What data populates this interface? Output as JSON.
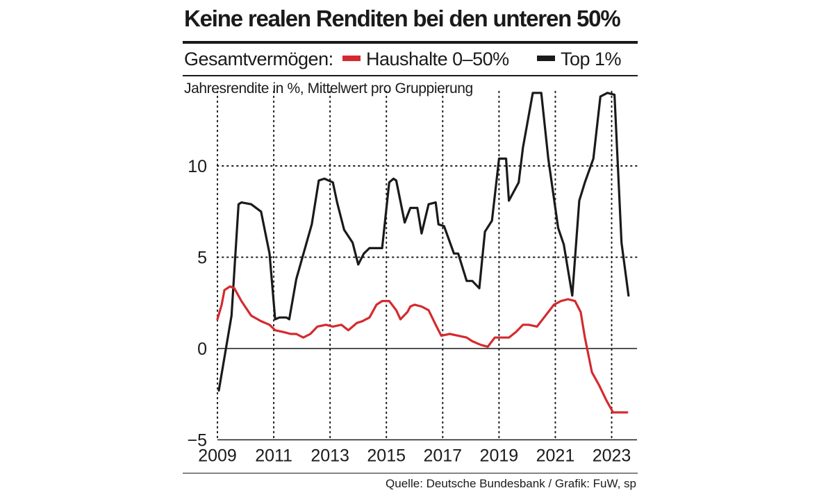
{
  "title": "Keine realen Renditen bei den unteren 50%",
  "legend": {
    "label": "Gesamtvermögen:",
    "items": [
      {
        "name": "Haushalte 0–50%",
        "color": "#d42a2f"
      },
      {
        "name": "Top 1%",
        "color": "#1a1a1a"
      }
    ]
  },
  "subtitle": "Jahresrendite in %, Mittelwert pro Gruppierung",
  "source": "Quelle: Deutsche Bundesbank / Grafik: FuW, sp",
  "chart_data": {
    "type": "line",
    "title": "Keine realen Renditen bei den unteren 50%",
    "ylabel": "Jahresrendite in %, Mittelwert pro Gruppierung",
    "xlabel": "",
    "xlim": [
      2009,
      2023.9
    ],
    "ylim": [
      -5,
      14
    ],
    "x_ticks": [
      "2009",
      "2011",
      "2013",
      "2015",
      "2017",
      "2019",
      "2021",
      "2023"
    ],
    "y_ticks": [
      "−5",
      "0",
      "5",
      "10"
    ],
    "grid": true,
    "series": [
      {
        "name": "Top 1%",
        "color": "#1a1a1a",
        "x": [
          2009.05,
          2009.5,
          2009.75,
          2009.85,
          2010.2,
          2010.55,
          2010.85,
          2011.05,
          2011.2,
          2011.45,
          2011.55,
          2011.8,
          2012.35,
          2012.6,
          2012.8,
          2013.1,
          2013.25,
          2013.5,
          2013.8,
          2014.0,
          2014.2,
          2014.4,
          2014.6,
          2014.85,
          2015.1,
          2015.25,
          2015.35,
          2015.65,
          2015.85,
          2016.1,
          2016.25,
          2016.5,
          2016.75,
          2016.85,
          2017.05,
          2017.4,
          2017.55,
          2017.85,
          2018.05,
          2018.3,
          2018.5,
          2018.75,
          2019.0,
          2019.25,
          2019.35,
          2019.7,
          2019.85,
          2020.2,
          2020.5,
          2020.75,
          2020.85,
          2021.1,
          2021.3,
          2021.6,
          2021.85,
          2022.05,
          2022.35,
          2022.6,
          2022.85,
          2023.1,
          2023.35,
          2023.6
        ],
        "values": [
          -2.3,
          1.8,
          7.9,
          8.0,
          7.9,
          7.5,
          5.2,
          1.6,
          1.7,
          1.7,
          1.6,
          3.8,
          6.8,
          9.2,
          9.3,
          9.1,
          8.0,
          6.5,
          5.8,
          4.6,
          5.2,
          5.5,
          5.5,
          5.5,
          9.1,
          9.3,
          9.2,
          6.9,
          7.7,
          7.7,
          6.3,
          7.9,
          8.0,
          6.8,
          6.7,
          5.2,
          5.2,
          3.7,
          3.7,
          3.3,
          6.4,
          7.0,
          10.4,
          10.4,
          8.1,
          9.1,
          11.0,
          14.0,
          14.0,
          10.4,
          9.3,
          6.6,
          5.7,
          2.9,
          8.1,
          9.1,
          10.4,
          13.8,
          14.0,
          13.9,
          5.8,
          2.9
        ]
      },
      {
        "name": "Haushalte 0–50%",
        "color": "#d42a2f",
        "x": [
          2009.0,
          2009.15,
          2009.25,
          2009.45,
          2009.6,
          2009.85,
          2010.2,
          2010.55,
          2010.85,
          2011.05,
          2011.35,
          2011.6,
          2011.8,
          2012.05,
          2012.3,
          2012.55,
          2012.85,
          2013.1,
          2013.4,
          2013.65,
          2013.95,
          2014.15,
          2014.4,
          2014.65,
          2014.85,
          2015.1,
          2015.35,
          2015.5,
          2015.75,
          2015.85,
          2016.0,
          2016.25,
          2016.5,
          2016.75,
          2016.95,
          2017.25,
          2017.55,
          2017.85,
          2018.05,
          2018.35,
          2018.6,
          2018.85,
          2019.15,
          2019.35,
          2019.6,
          2019.85,
          2020.05,
          2020.35,
          2020.6,
          2020.85,
          2020.95,
          2021.2,
          2021.45,
          2021.7,
          2021.9,
          2022.05,
          2022.3,
          2022.55,
          2022.8,
          2023.05,
          2023.3,
          2023.55
        ],
        "values": [
          1.6,
          2.4,
          3.2,
          3.4,
          3.3,
          2.6,
          1.8,
          1.5,
          1.3,
          1.0,
          0.9,
          0.8,
          0.8,
          0.6,
          0.8,
          1.2,
          1.3,
          1.2,
          1.3,
          1.0,
          1.4,
          1.5,
          1.7,
          2.4,
          2.6,
          2.6,
          2.1,
          1.6,
          2.0,
          2.3,
          2.4,
          2.3,
          2.1,
          1.3,
          0.7,
          0.8,
          0.7,
          0.6,
          0.4,
          0.2,
          0.1,
          0.6,
          0.6,
          0.6,
          0.9,
          1.3,
          1.3,
          1.2,
          1.7,
          2.2,
          2.4,
          2.6,
          2.7,
          2.6,
          2.0,
          0.6,
          -1.3,
          -2.0,
          -2.8,
          -3.5,
          -3.5,
          -3.5
        ]
      }
    ]
  }
}
